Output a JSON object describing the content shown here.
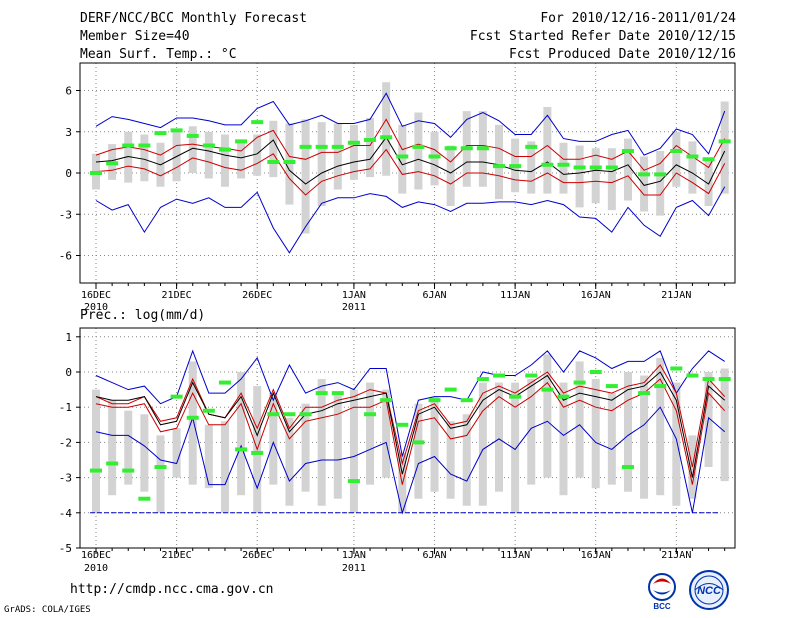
{
  "header": {
    "left": [
      "DERF/NCC/BCC Monthly Forecast",
      "Member Size=40",
      "Mean Surf. Temp.: °C"
    ],
    "right": [
      "For 2010/12/16-2011/01/24",
      "Fcst Started Refer Date 2010/12/15",
      "Fcst Produced Date 2010/12/16"
    ]
  },
  "footer": {
    "url": "http://cmdp.ncc.cma.gov.cn",
    "credit": "GrADS: COLA/IGES",
    "logo_left_text": "BCC",
    "logo_right_text": "NCC"
  },
  "colors": {
    "bar": "#d3d3d3",
    "outer": "#0000cc",
    "inner": "#cc0000",
    "median": "#000000",
    "obs": "#33ee33",
    "grid": "#888888"
  },
  "chart_data": [
    {
      "type": "box-band",
      "title": "Mean Surf. Temp.: °C",
      "ylabel": "°C",
      "ylim": [
        -8,
        8
      ],
      "yticks": [
        6,
        3,
        0,
        -3,
        -6
      ],
      "xtick_labels": [
        {
          "day": 0,
          "label": "16DEC",
          "sub": "2010"
        },
        {
          "day": 5,
          "label": "21DEC",
          "sub": ""
        },
        {
          "day": 10,
          "label": "26DEC",
          "sub": ""
        },
        {
          "day": 16,
          "label": "1JAN",
          "sub": "2011"
        },
        {
          "day": 21,
          "label": "6JAN",
          "sub": ""
        },
        {
          "day": 26,
          "label": "11JAN",
          "sub": ""
        },
        {
          "day": 31,
          "label": "16JAN",
          "sub": ""
        },
        {
          "day": 36,
          "label": "21JAN",
          "sub": ""
        }
      ],
      "days": 40,
      "series": [
        {
          "name": "max",
          "values": [
            3.4,
            4.1,
            3.9,
            3.6,
            3.3,
            4.0,
            4.0,
            3.8,
            3.5,
            3.5,
            4.7,
            5.2,
            3.5,
            3.8,
            4.2,
            3.6,
            3.6,
            3.9,
            5.8,
            3.4,
            3.8,
            3.6,
            2.6,
            3.9,
            4.4,
            3.8,
            2.8,
            2.8,
            4.2,
            2.5,
            2.3,
            2.3,
            2.8,
            3.1,
            1.3,
            1.8,
            3.2,
            2.8,
            1.4,
            4.5
          ]
        },
        {
          "name": "p75",
          "values": [
            1.3,
            1.7,
            1.9,
            1.7,
            1.3,
            2.0,
            2.1,
            1.9,
            1.8,
            1.6,
            2.6,
            3.1,
            1.2,
            1.0,
            1.5,
            1.5,
            2.0,
            2.0,
            3.9,
            1.7,
            2.1,
            1.7,
            0.8,
            2.0,
            2.0,
            1.8,
            1.2,
            1.2,
            2.0,
            1.0,
            1.0,
            1.3,
            1.0,
            1.6,
            0.2,
            0.7,
            2.0,
            1.2,
            0.4,
            2.5
          ]
        },
        {
          "name": "median",
          "values": [
            0.8,
            0.9,
            1.2,
            1.0,
            0.6,
            1.2,
            1.8,
            1.6,
            1.3,
            1.1,
            1.4,
            2.4,
            0.2,
            -0.8,
            0.0,
            0.5,
            0.8,
            1.0,
            2.6,
            0.6,
            1.0,
            0.6,
            0.0,
            0.8,
            0.8,
            0.6,
            0.2,
            0.1,
            0.8,
            -0.1,
            0.0,
            0.2,
            0.1,
            0.6,
            -0.9,
            -0.6,
            0.6,
            0.0,
            -0.8,
            1.6
          ]
        },
        {
          "name": "p25",
          "values": [
            0.1,
            0.2,
            0.5,
            0.3,
            -0.2,
            0.4,
            1.1,
            0.8,
            0.4,
            0.2,
            0.7,
            1.4,
            -0.4,
            -1.6,
            -0.6,
            -0.2,
            0.1,
            0.3,
            1.7,
            -0.1,
            0.1,
            -0.2,
            -0.8,
            0.0,
            0.0,
            -0.2,
            -0.5,
            -0.6,
            0.0,
            -0.7,
            -0.7,
            -0.6,
            -0.7,
            -0.2,
            -1.6,
            -1.6,
            0.0,
            -0.7,
            -1.5,
            0.7
          ]
        },
        {
          "name": "min",
          "values": [
            -2.0,
            -2.7,
            -2.3,
            -4.3,
            -2.5,
            -1.9,
            -2.2,
            -1.8,
            -2.5,
            -2.5,
            -1.4,
            -4.0,
            -5.8,
            -3.9,
            -2.2,
            -1.8,
            -1.8,
            -1.5,
            -1.7,
            -2.5,
            -2.1,
            -2.3,
            -2.8,
            -2.2,
            -2.2,
            -2.1,
            -2.1,
            -2.3,
            -2.0,
            -2.3,
            -3.2,
            -3.3,
            -4.3,
            -2.5,
            -3.8,
            -4.6,
            -2.5,
            -2.0,
            -3.1,
            -1.0
          ]
        },
        {
          "name": "bar_low",
          "values": [
            -1.2,
            -0.5,
            -0.7,
            -0.6,
            -1.0,
            -0.6,
            0.0,
            -0.4,
            -1.0,
            -0.4,
            -0.2,
            -0.3,
            -2.3,
            -4.4,
            -2.4,
            -1.2,
            -0.5,
            -0.3,
            -0.2,
            -1.5,
            -1.2,
            -0.9,
            -2.4,
            -1.0,
            -1.0,
            -1.9,
            -1.4,
            -1.5,
            -1.5,
            -1.5,
            -2.5,
            -2.2,
            -2.7,
            -2.0,
            -2.8,
            -3.1,
            -1.0,
            -1.5,
            -2.4,
            -1.5
          ]
        },
        {
          "name": "bar_high",
          "values": [
            1.4,
            2.1,
            3.0,
            2.8,
            2.2,
            3.1,
            3.4,
            3.0,
            2.8,
            2.3,
            2.8,
            3.8,
            3.6,
            3.9,
            3.7,
            3.6,
            3.5,
            4.0,
            6.6,
            3.5,
            4.4,
            3.0,
            2.0,
            4.5,
            4.5,
            3.5,
            2.5,
            2.3,
            4.8,
            2.2,
            2.0,
            1.8,
            1.8,
            2.5,
            1.2,
            1.6,
            3.0,
            2.3,
            1.1,
            5.2
          ]
        },
        {
          "name": "observed",
          "values": [
            0.0,
            0.7,
            2.0,
            2.0,
            2.9,
            3.1,
            2.7,
            2.0,
            1.7,
            2.3,
            3.7,
            0.8,
            0.8,
            1.9,
            1.9,
            1.9,
            2.2,
            2.4,
            2.6,
            1.2,
            1.9,
            1.2,
            1.8,
            1.8,
            1.8,
            0.5,
            0.5,
            1.9,
            0.6,
            0.6,
            0.4,
            0.4,
            0.4,
            1.6,
            -0.1,
            -0.1,
            1.6,
            1.2,
            1.0,
            2.3
          ]
        }
      ]
    },
    {
      "type": "box-band",
      "title": "Prec.: log(mm/d)",
      "ylabel": "log(mm/d)",
      "ylim": [
        -5,
        1.25
      ],
      "yticks": [
        1,
        0,
        -1,
        -2,
        -3,
        -4,
        -5
      ],
      "baseline": -4,
      "xtick_labels": [
        {
          "day": 0,
          "label": "16DEC",
          "sub": "2010"
        },
        {
          "day": 5,
          "label": "21DEC",
          "sub": ""
        },
        {
          "day": 10,
          "label": "26DEC",
          "sub": ""
        },
        {
          "day": 16,
          "label": "1JAN",
          "sub": "2011"
        },
        {
          "day": 21,
          "label": "6JAN",
          "sub": ""
        },
        {
          "day": 26,
          "label": "11JAN",
          "sub": ""
        },
        {
          "day": 31,
          "label": "16JAN",
          "sub": ""
        },
        {
          "day": 36,
          "label": "21JAN",
          "sub": ""
        }
      ],
      "days": 40,
      "series": [
        {
          "name": "max",
          "values": [
            -0.1,
            -0.3,
            -0.5,
            -0.4,
            -0.9,
            -0.7,
            0.6,
            -0.6,
            -0.6,
            -0.2,
            0.4,
            -0.8,
            0.2,
            -0.6,
            -0.4,
            -0.3,
            -0.5,
            0.1,
            0.1,
            -2.4,
            -0.8,
            -0.7,
            -0.7,
            -0.8,
            0.0,
            -0.1,
            -0.1,
            0.2,
            0.6,
            0.0,
            0.6,
            0.4,
            0.1,
            0.3,
            0.3,
            0.6,
            -0.6,
            0.1,
            0.6,
            0.3
          ]
        },
        {
          "name": "p75",
          "values": [
            -0.7,
            -0.9,
            -0.9,
            -0.7,
            -1.4,
            -1.3,
            -0.2,
            -1.2,
            -1.3,
            -0.6,
            -1.6,
            -0.5,
            -1.6,
            -1.0,
            -1.0,
            -0.8,
            -0.7,
            -0.5,
            -0.6,
            -2.6,
            -1.1,
            -0.9,
            -1.5,
            -1.4,
            -0.6,
            -0.4,
            -0.6,
            -0.3,
            0.0,
            -0.6,
            -0.4,
            -0.5,
            -0.6,
            -0.4,
            -0.3,
            0.2,
            -0.6,
            -2.7,
            -0.2,
            -0.7
          ]
        },
        {
          "name": "median",
          "values": [
            -0.7,
            -0.8,
            -0.8,
            -0.7,
            -1.5,
            -1.4,
            -0.3,
            -1.2,
            -1.3,
            -0.7,
            -1.8,
            -0.6,
            -1.7,
            -1.2,
            -1.1,
            -0.9,
            -0.8,
            -0.7,
            -0.6,
            -2.9,
            -1.2,
            -1.0,
            -1.6,
            -1.5,
            -0.8,
            -0.5,
            -0.7,
            -0.4,
            -0.1,
            -0.8,
            -0.6,
            -0.7,
            -0.8,
            -0.5,
            -0.4,
            0.0,
            -0.8,
            -3.0,
            -0.4,
            -0.8
          ]
        },
        {
          "name": "p25",
          "values": [
            -0.9,
            -1.0,
            -1.0,
            -0.9,
            -1.7,
            -1.6,
            -0.6,
            -1.5,
            -1.5,
            -0.9,
            -2.2,
            -0.9,
            -1.9,
            -1.4,
            -1.3,
            -1.2,
            -1.0,
            -1.0,
            -0.8,
            -3.2,
            -1.4,
            -1.3,
            -1.9,
            -1.8,
            -1.1,
            -0.7,
            -1.0,
            -0.7,
            -0.3,
            -1.0,
            -0.8,
            -1.0,
            -1.1,
            -0.8,
            -0.6,
            -0.2,
            -1.1,
            -3.2,
            -0.6,
            -1.1
          ]
        },
        {
          "name": "min",
          "values": [
            -1.7,
            -1.8,
            -1.8,
            -2.1,
            -2.5,
            -2.6,
            -1.3,
            -3.2,
            -3.2,
            -2.1,
            -3.3,
            -2.0,
            -3.1,
            -2.6,
            -2.5,
            -2.5,
            -2.4,
            -2.2,
            -2.0,
            -4.0,
            -2.6,
            -2.4,
            -2.9,
            -3.1,
            -2.2,
            -1.9,
            -2.2,
            -1.6,
            -1.4,
            -1.8,
            -1.5,
            -2.0,
            -2.2,
            -1.8,
            -1.5,
            -1.0,
            -1.9,
            -4.0,
            -1.3,
            -1.7
          ]
        },
        {
          "name": "bar_low",
          "values": [
            -4.0,
            -3.5,
            -3.2,
            -3.4,
            -4.0,
            -3.0,
            -3.2,
            -3.3,
            -4.0,
            -3.5,
            -4.0,
            -3.2,
            -3.8,
            -3.4,
            -3.8,
            -3.6,
            -4.0,
            -3.2,
            -3.0,
            -4.0,
            -3.6,
            -3.4,
            -3.6,
            -3.8,
            -3.8,
            -3.4,
            -4.0,
            -3.2,
            -3.0,
            -3.5,
            -3.0,
            -3.3,
            -3.2,
            -3.4,
            -3.6,
            -3.5,
            -3.8,
            -3.6,
            -2.7,
            -3.1
          ]
        },
        {
          "name": "bar_high",
          "values": [
            -0.5,
            -0.8,
            -1.1,
            -1.2,
            -1.8,
            -1.6,
            0.3,
            -1.5,
            -1.4,
            0.0,
            -0.4,
            -0.6,
            -1.3,
            -0.9,
            -0.2,
            -0.6,
            -0.5,
            -0.3,
            -0.5,
            -2.3,
            -0.9,
            -0.7,
            -1.4,
            -1.2,
            -0.3,
            -0.3,
            -0.3,
            -0.2,
            0.5,
            -0.3,
            0.3,
            -0.2,
            -0.6,
            0.0,
            -0.1,
            0.4,
            -0.3,
            -1.8,
            0.0,
            0.1
          ]
        },
        {
          "name": "observed",
          "values": [
            -2.8,
            -2.6,
            -2.8,
            -3.6,
            -2.7,
            -0.7,
            -1.3,
            -1.1,
            -0.3,
            -2.2,
            -2.3,
            -1.2,
            -1.2,
            -1.2,
            -0.6,
            -0.6,
            -3.1,
            -1.2,
            -0.8,
            -1.5,
            -2.0,
            -0.8,
            -0.5,
            -0.8,
            -0.2,
            -0.1,
            -0.7,
            -0.1,
            -0.5,
            -0.7,
            -0.3,
            0.0,
            -0.4,
            -2.7,
            -0.6,
            -0.4,
            0.1,
            -0.1,
            -0.2,
            -0.2
          ]
        }
      ]
    }
  ]
}
